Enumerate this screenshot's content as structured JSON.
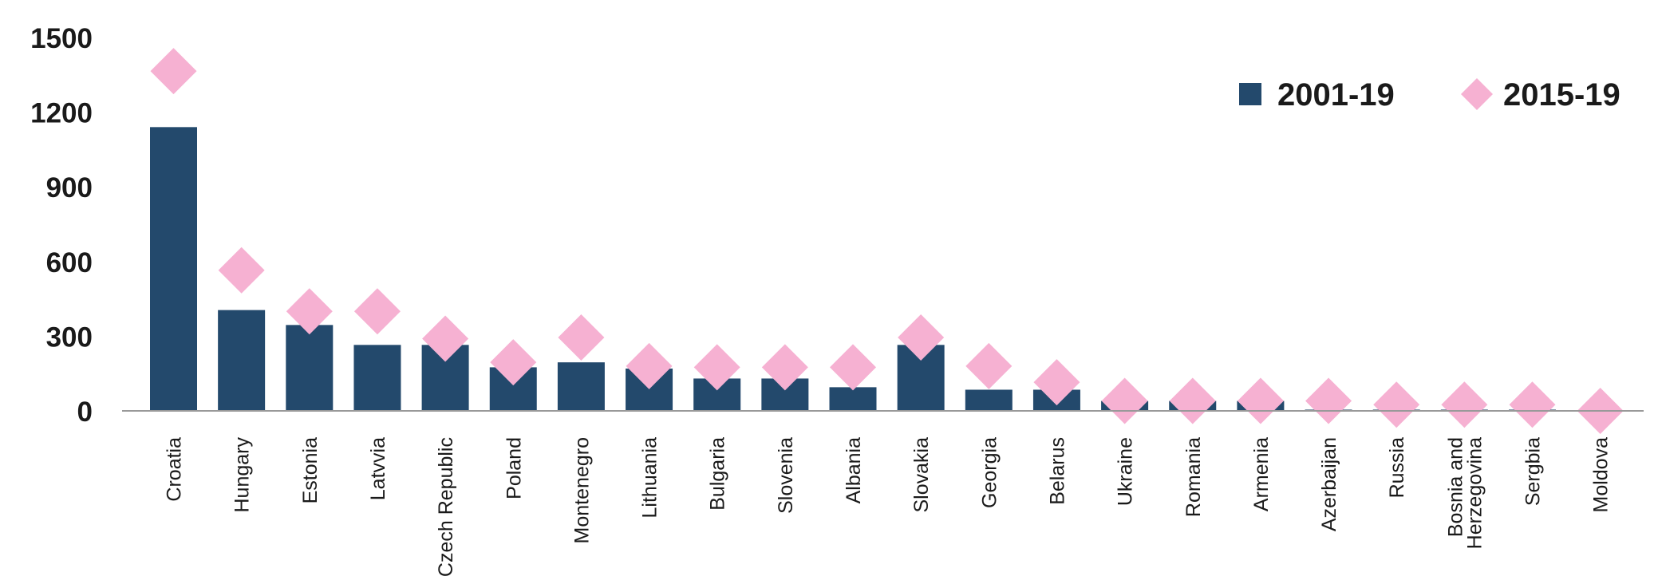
{
  "chart_data": {
    "type": "bar",
    "categories": [
      "Croatia",
      "Hungary",
      "Estonia",
      "Latvvia",
      "Czech Republic",
      "Poland",
      "Montenegro",
      "Lithuania",
      "Bulgaria",
      "Slovenia",
      "Albania",
      "Slovakia",
      "Georgia",
      "Belarus",
      "Ukraine",
      "Romania",
      "Armenia",
      "Azerbaijan",
      "Russia",
      "Bosnia and Herzegovina",
      "Sergbia",
      "Moldova"
    ],
    "highlight_category": "Georgia",
    "series": [
      {
        "name": "2001-19",
        "type": "bar",
        "color": "#23496c",
        "values": [
          1140,
          405,
          345,
          265,
          265,
          175,
          195,
          170,
          130,
          130,
          95,
          265,
          85,
          85,
          40,
          40,
          40,
          5,
          5,
          5,
          5,
          0
        ]
      },
      {
        "name": "2015-19",
        "type": "scatter",
        "marker": "diamond",
        "color": "#f6b1d2",
        "values": [
          1365,
          565,
          400,
          400,
          290,
          195,
          295,
          180,
          175,
          175,
          175,
          295,
          180,
          115,
          40,
          40,
          40,
          40,
          25,
          25,
          25,
          0
        ]
      }
    ],
    "yticks": [
      0,
      300,
      600,
      900,
      1200,
      1500
    ],
    "ylim": [
      0,
      1500
    ],
    "grid": false,
    "legend_position": "top-right",
    "title": "",
    "xlabel": "",
    "ylabel": "",
    "colors": {
      "bar": "#23496c",
      "marker": "#f6b1d2",
      "highlight_label": "#e03a44",
      "axis": "#999999",
      "text": "#1a1a1a"
    }
  }
}
